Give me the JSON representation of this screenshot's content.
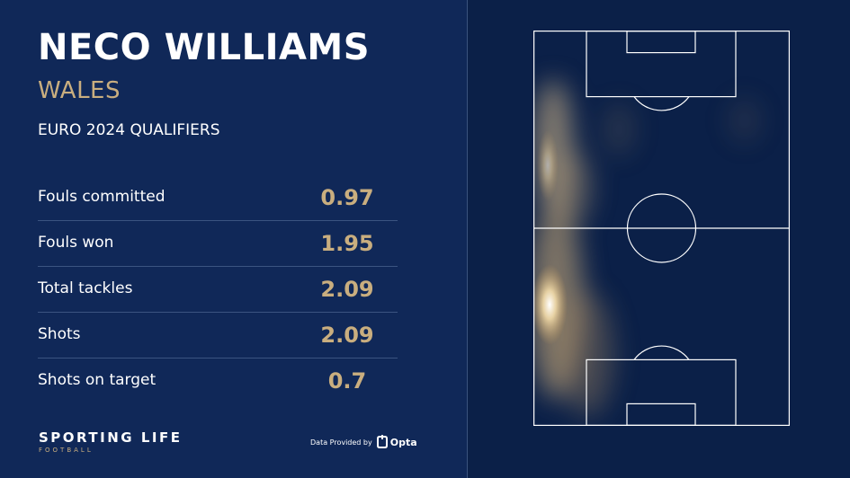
{
  "player": {
    "name": "NECO WILLIAMS",
    "team": "WALES",
    "competition": "EURO 2024 QUALIFIERS"
  },
  "stats": [
    {
      "label": "Fouls committed",
      "value": "0.97"
    },
    {
      "label": "Fouls won",
      "value": "1.95"
    },
    {
      "label": "Total tackles",
      "value": "2.09"
    },
    {
      "label": "Shots",
      "value": "2.09"
    },
    {
      "label": "Shots on target",
      "value": "0.7"
    }
  ],
  "branding": {
    "main": "SPORTING LIFE",
    "sub": "FOOTBALL"
  },
  "credit": {
    "text": "Data Provided by",
    "provider": "Opta",
    "icon": "opta-logo-icon"
  },
  "colors": {
    "background_left": "#102858",
    "background_right": "#0b2048",
    "accent_gold": "#c9ae7f",
    "text": "#ffffff",
    "heat": "#e8c98c"
  },
  "heatmap": {
    "description": "heat concentrated along the left touchline, strongest in the team's own half"
  }
}
